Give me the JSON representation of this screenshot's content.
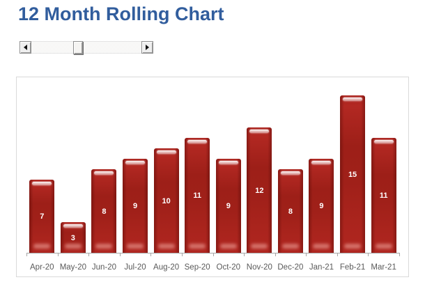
{
  "page": {
    "title": "12 Month Rolling Chart"
  },
  "colors": {
    "title_text": "#315D9D",
    "bar_fill": "#A5211B",
    "bar_fill_light": "#B22822",
    "bar_value_text": "#FFFFFF",
    "axis_text": "#595959",
    "axis_line": "#A6A6A6",
    "panel_border": "#D9D9D9"
  },
  "scrollbar": {
    "left_arrow_icon": "left-triangle",
    "right_arrow_icon": "right-triangle",
    "thumb_position_percent": 42
  },
  "chart_data": {
    "type": "bar",
    "title": "12 Month Rolling Chart",
    "categories": [
      "Apr-20",
      "May-20",
      "Jun-20",
      "Jul-20",
      "Aug-20",
      "Sep-20",
      "Oct-20",
      "Nov-20",
      "Dec-20",
      "Jan-21",
      "Feb-21",
      "Mar-21"
    ],
    "values": [
      7,
      3,
      8,
      9,
      10,
      11,
      9,
      12,
      8,
      9,
      15,
      11
    ],
    "bar_color": "#A5211B",
    "data_labels": "inside-center",
    "data_label_color": "#FFFFFF",
    "xlabel": "",
    "ylabel": "",
    "ylim": [
      0,
      17
    ],
    "grid": false,
    "legend": false,
    "y_axis_visible": false
  }
}
